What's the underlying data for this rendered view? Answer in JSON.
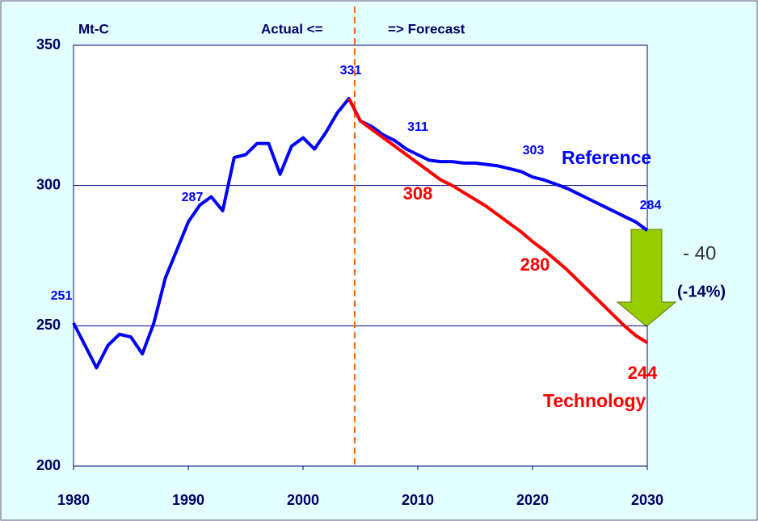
{
  "chart_data": {
    "type": "line",
    "y_unit": "Mt-C",
    "annotations": {
      "actual": "Actual <=",
      "forecast": "=> Forecast",
      "change": "- 40",
      "change_pct": "(-14%)"
    },
    "x": [
      1980,
      1981,
      1982,
      1983,
      1984,
      1985,
      1986,
      1987,
      1988,
      1989,
      1990,
      1991,
      1992,
      1993,
      1994,
      1995,
      1996,
      1997,
      1998,
      1999,
      2000,
      2001,
      2002,
      2003,
      2004,
      2005,
      2006,
      2007,
      2008,
      2009,
      2010,
      2011,
      2012,
      2013,
      2014,
      2015,
      2016,
      2017,
      2018,
      2019,
      2020,
      2021,
      2022,
      2023,
      2024,
      2025,
      2026,
      2027,
      2028,
      2029,
      2030
    ],
    "series": [
      {
        "name": "Reference",
        "color": "#0000ff",
        "values": [
          251,
          243,
          235,
          243,
          247,
          246,
          240,
          251,
          267,
          277,
          287,
          293,
          296,
          291,
          310,
          311,
          315,
          315,
          304,
          314,
          317,
          313,
          319,
          326,
          331,
          323,
          321,
          318,
          316,
          313,
          311,
          309,
          308.5,
          308.5,
          308,
          308,
          307.5,
          307,
          306,
          305,
          303,
          302,
          300.5,
          299,
          297,
          295,
          293,
          291,
          289,
          287,
          284
        ]
      },
      {
        "name": "Technology",
        "color": "#ff0000",
        "values": [
          null,
          null,
          null,
          null,
          null,
          null,
          null,
          null,
          null,
          null,
          null,
          null,
          null,
          null,
          null,
          null,
          null,
          null,
          null,
          null,
          null,
          null,
          null,
          null,
          331,
          323,
          320,
          317,
          314,
          311,
          308,
          305,
          302,
          300,
          297.5,
          295,
          292.5,
          289.5,
          286.5,
          283.5,
          280,
          277,
          273.5,
          270,
          266,
          262,
          258,
          254,
          250,
          246.5,
          244
        ]
      }
    ],
    "xlim": [
      1980,
      2030
    ],
    "xticks": [
      1980,
      1990,
      2000,
      2010,
      2020,
      2030
    ],
    "ylim": [
      200,
      350
    ],
    "yticks": [
      200,
      250,
      300,
      350
    ],
    "grid": true,
    "divider": {
      "x": 2004.5,
      "color": "#ff6600"
    }
  }
}
